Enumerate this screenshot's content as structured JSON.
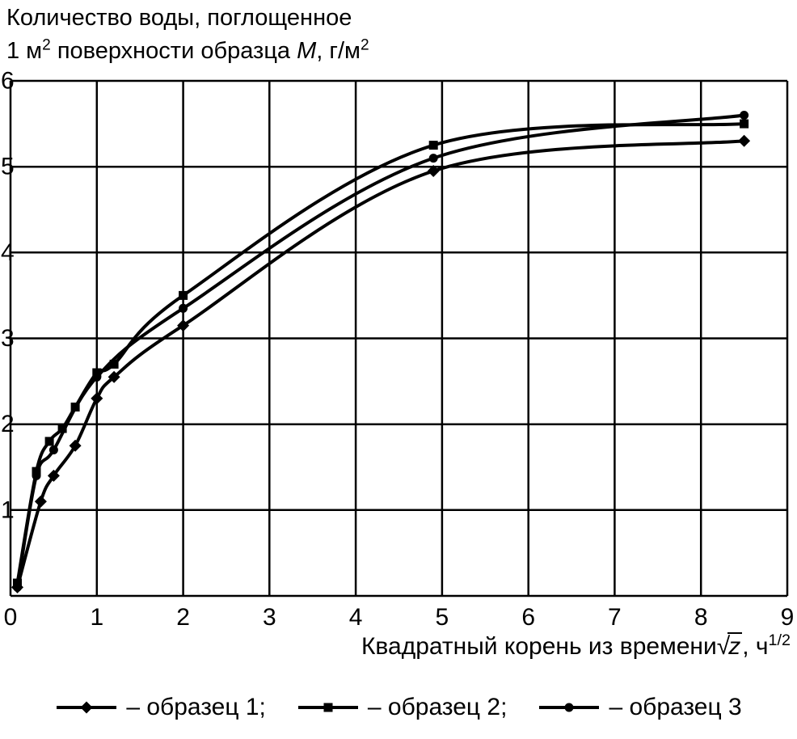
{
  "title": {
    "line1": "Количество воды, поглощенное",
    "line2": {
      "p1": "1 м",
      "sup1": "2",
      "p2": " поверхности образца ",
      "var": "M",
      "p3": ", г/м",
      "sup2": "2"
    }
  },
  "x_axis": {
    "label": {
      "p1": "Квадратный корень из времени",
      "radical": "√",
      "var": "z",
      "p2": ", ч",
      "sup": "1/2"
    },
    "ticks": [
      "0",
      "1",
      "2",
      "3",
      "4",
      "5",
      "6",
      "7",
      "8",
      "9"
    ]
  },
  "y_axis": {
    "ticks": [
      "6",
      "5",
      "4",
      "3",
      "2",
      "1"
    ]
  },
  "colors": {
    "ink": "#000000",
    "background": "#ffffff"
  },
  "chart_data": {
    "type": "line",
    "title": "Количество воды, поглощенное 1 м² поверхности образца M, г/м²",
    "xlabel": "Квадратный корень из времени √z, ч^1/2",
    "ylabel": "M, г/м²",
    "xlim": [
      0,
      9
    ],
    "ylim": [
      0,
      6
    ],
    "grid": true,
    "legend_position": "bottom",
    "series": [
      {
        "name": "образец 1",
        "marker": "diamond",
        "color": "#000000",
        "x": [
          0.08,
          0.35,
          0.5,
          0.75,
          1.0,
          1.2,
          2.0,
          4.9,
          8.5
        ],
        "y": [
          0.1,
          1.1,
          1.4,
          1.75,
          2.3,
          2.55,
          3.15,
          4.95,
          5.3
        ]
      },
      {
        "name": "образец 2",
        "marker": "square",
        "color": "#000000",
        "x": [
          0.08,
          0.3,
          0.45,
          0.6,
          0.75,
          1.0,
          1.2,
          2.0,
          4.9,
          8.5
        ],
        "y": [
          0.15,
          1.45,
          1.8,
          1.95,
          2.2,
          2.6,
          2.7,
          3.5,
          5.25,
          5.5
        ]
      },
      {
        "name": "образец 3",
        "marker": "circle",
        "color": "#000000",
        "x": [
          0.08,
          0.3,
          0.5,
          1.0,
          2.0,
          4.9,
          8.5
        ],
        "y": [
          0.1,
          1.4,
          1.7,
          2.55,
          3.35,
          5.1,
          5.6
        ]
      }
    ],
    "legend": [
      {
        "label": "– образец 1;",
        "marker": "diamond"
      },
      {
        "label": "– образец 2;",
        "marker": "square"
      },
      {
        "label": "– образец 3",
        "marker": "circle"
      }
    ]
  }
}
